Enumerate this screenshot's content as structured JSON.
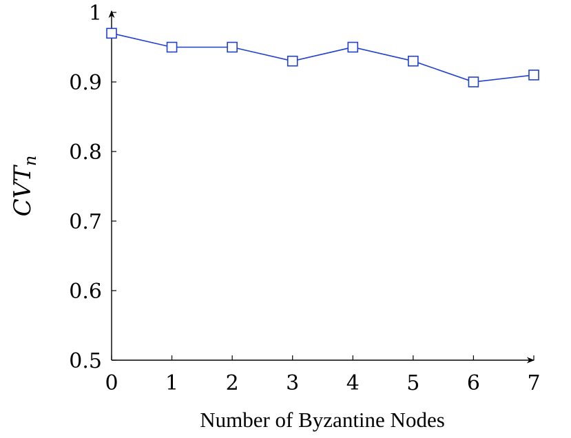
{
  "chart_data": {
    "type": "line",
    "title": "",
    "xlabel": "Number of Byzantine Nodes",
    "ylabel": "CVT",
    "ylabel_subscript": "n",
    "xlim": [
      0,
      7
    ],
    "ylim": [
      0.5,
      1
    ],
    "x_ticks": [
      0,
      1,
      2,
      3,
      4,
      5,
      6,
      7
    ],
    "x_tick_labels": [
      "0",
      "1",
      "2",
      "3",
      "4",
      "5",
      "6",
      "7"
    ],
    "y_ticks": [
      0.5,
      0.6,
      0.7,
      0.8,
      0.9,
      1.0
    ],
    "y_tick_labels": [
      "0.5",
      "0.6",
      "0.7",
      "0.8",
      "0.9",
      "1"
    ],
    "grid": false,
    "legend": "none",
    "series": [
      {
        "x": [
          0,
          1,
          2,
          3,
          4,
          5,
          6,
          7
        ],
        "y": [
          0.97,
          0.95,
          0.95,
          0.93,
          0.95,
          0.93,
          0.9,
          0.91
        ],
        "color": "#1f3fd1",
        "marker": "square"
      }
    ]
  }
}
